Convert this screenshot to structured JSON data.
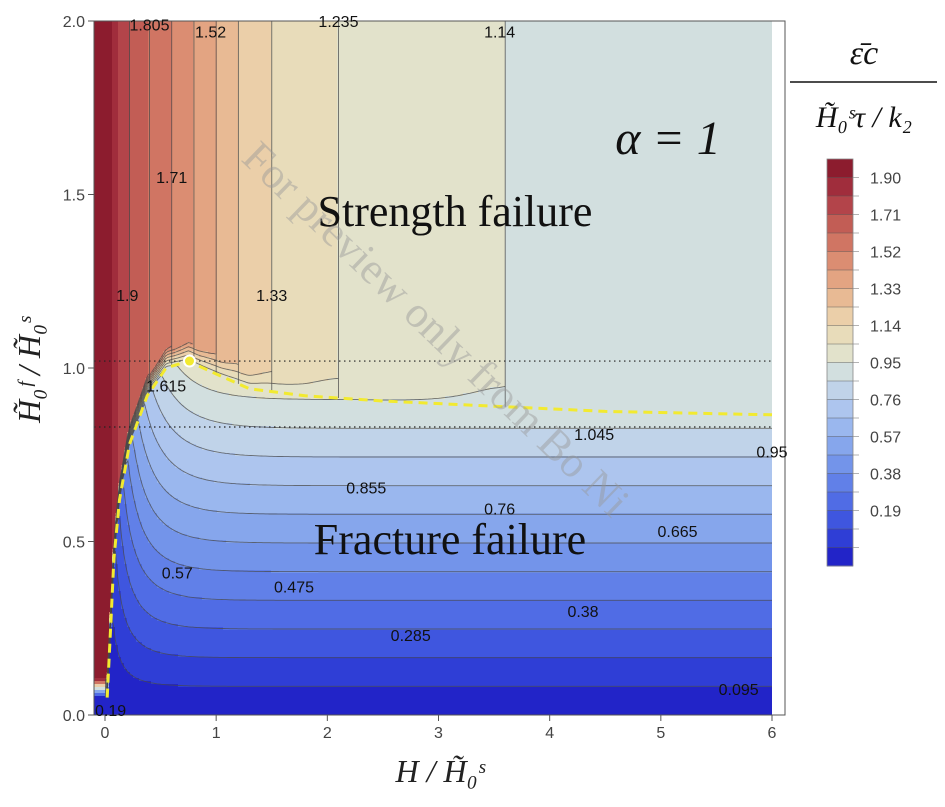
{
  "chart_data": {
    "type": "contour",
    "title": "",
    "xlabel": "H / H̃₀ˢ",
    "ylabel": "H̃₀ᶠ / H̃₀ˢ",
    "xlim": [
      0,
      6
    ],
    "ylim": [
      0,
      2
    ],
    "x_ticks": [
      "0",
      "1",
      "2",
      "3",
      "4",
      "5",
      "6"
    ],
    "y_ticks": [
      "0.0",
      "0.5",
      "1.0",
      "1.5",
      "2.0"
    ],
    "annotation": "α = 1",
    "regions": [
      "Strength failure",
      "Fracture failure"
    ],
    "colorbar": {
      "label_top": "ε̄c",
      "label_bottom": "H̃₀ˢτ / k₂",
      "ticks": [
        "1.90",
        "1.71",
        "1.52",
        "1.33",
        "1.14",
        "0.95",
        "0.76",
        "0.57",
        "0.38",
        "0.19"
      ],
      "levels": [
        0,
        0.095,
        0.19,
        0.285,
        0.38,
        0.475,
        0.57,
        0.665,
        0.76,
        0.855,
        0.95,
        1.045,
        1.14,
        1.235,
        1.33,
        1.425,
        1.52,
        1.615,
        1.71,
        1.805,
        1.9,
        1.995
      ],
      "colors": [
        "#2224c8",
        "#2f3ed6",
        "#3f56df",
        "#506ce5",
        "#6180e8",
        "#7394ea",
        "#86a6ec",
        "#9ab7ee",
        "#adc5ee",
        "#c0d3e9",
        "#d2dfdf",
        "#e2e2cb",
        "#e8dcba",
        "#ebcfa9",
        "#e8ba94",
        "#e3a482",
        "#db8d72",
        "#d07563",
        "#c25d55",
        "#b3444a",
        "#a02d3c",
        "#8c1c2e"
      ]
    },
    "contour_labels": [
      "1.805",
      "1.52",
      "1.235",
      "1.14",
      "1.71",
      "1.9",
      "1.33",
      "1.615",
      "1.045",
      "0.95",
      "0.855",
      "0.76",
      "0.665",
      "0.57",
      "0.475",
      "0.38",
      "0.285",
      "0.095",
      "0.19"
    ],
    "contour_label_values": [
      1.805,
      1.52,
      1.235,
      1.14,
      1.71,
      1.9,
      1.33,
      1.615,
      1.045,
      0.95,
      0.855,
      0.76,
      0.665,
      0.57,
      0.475,
      0.38,
      0.285,
      0.095,
      0.19
    ],
    "contour_label_xy": [
      [
        0.4,
        1.99
      ],
      [
        0.95,
        1.97
      ],
      [
        2.1,
        2.0
      ],
      [
        3.55,
        1.97
      ],
      [
        0.6,
        1.55
      ],
      [
        0.2,
        1.21
      ],
      [
        1.5,
        1.21
      ],
      [
        0.55,
        0.95
      ],
      [
        4.4,
        0.81
      ],
      [
        6.0,
        0.76
      ],
      [
        2.35,
        0.655
      ],
      [
        3.55,
        0.595
      ],
      [
        5.15,
        0.53
      ],
      [
        0.65,
        0.41
      ],
      [
        1.7,
        0.37
      ],
      [
        4.3,
        0.3
      ],
      [
        2.75,
        0.23
      ],
      [
        5.7,
        0.075
      ],
      [
        0.05,
        0.015
      ]
    ],
    "boundary": [
      [
        0.02,
        0.05
      ],
      [
        0.05,
        0.25
      ],
      [
        0.08,
        0.45
      ],
      [
        0.13,
        0.62
      ],
      [
        0.22,
        0.78
      ],
      [
        0.38,
        0.92
      ],
      [
        0.55,
        1.0
      ],
      [
        0.75,
        1.02
      ],
      [
        0.95,
        0.99
      ],
      [
        1.3,
        0.94
      ],
      [
        1.8,
        0.92
      ],
      [
        2.5,
        0.905
      ],
      [
        3.5,
        0.89
      ],
      [
        4.5,
        0.875
      ],
      [
        6.0,
        0.865
      ]
    ],
    "critical_point": [
      0.76,
      1.02
    ],
    "reference_lines_y": [
      1.02,
      0.83
    ]
  },
  "watermark": "For preview only from Bo Ni"
}
